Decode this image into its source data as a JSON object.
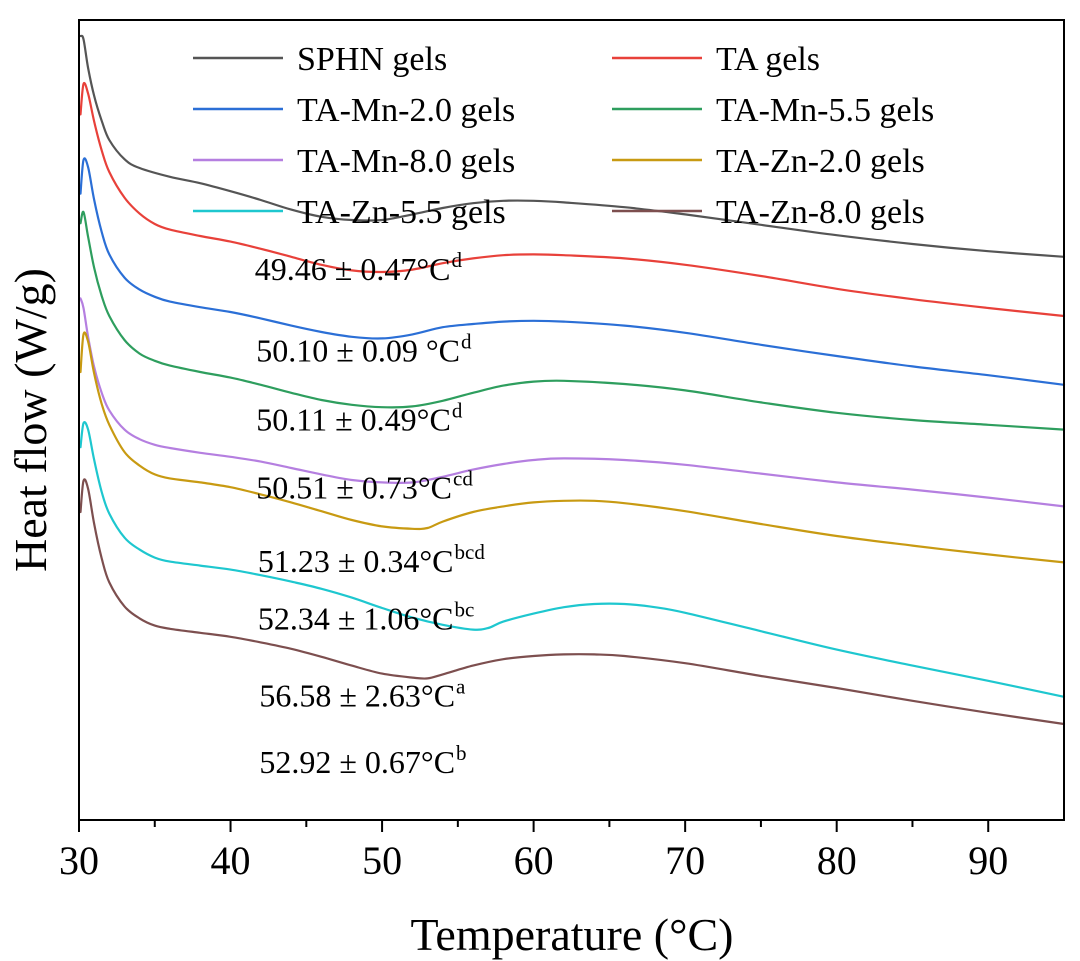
{
  "chart_data": {
    "type": "line",
    "xlabel": "Temperature (°C)",
    "ylabel": "Heat flow (W/g)",
    "xlim": [
      30,
      95
    ],
    "ylim": [
      0,
      100
    ],
    "x_ticks": [
      30,
      40,
      50,
      60,
      70,
      80,
      90
    ],
    "x_tick_labels": [
      "30",
      "40",
      "50",
      "60",
      "70",
      "80",
      "90"
    ],
    "y_ticks_shown": false,
    "legend_position": "top",
    "series": [
      {
        "name": "SPHN gels",
        "color": "#555555",
        "points": [
          [
            30.1,
            98.0
          ],
          [
            30.3,
            97.6
          ],
          [
            30.6,
            94.0
          ],
          [
            31.0,
            90.5
          ],
          [
            31.5,
            87.4
          ],
          [
            32.0,
            85.0
          ],
          [
            33.0,
            82.6
          ],
          [
            34.0,
            81.5
          ],
          [
            36.0,
            80.4
          ],
          [
            38.0,
            79.6
          ],
          [
            40.0,
            78.6
          ],
          [
            42.0,
            77.5
          ],
          [
            44.0,
            76.3
          ],
          [
            46.0,
            75.4
          ],
          [
            48.0,
            75.0
          ],
          [
            50.0,
            75.0
          ],
          [
            52.0,
            75.7
          ],
          [
            54.0,
            76.5
          ],
          [
            56.0,
            77.1
          ],
          [
            58.0,
            77.4
          ],
          [
            60.0,
            77.4
          ],
          [
            62.0,
            77.2
          ],
          [
            66.0,
            76.6
          ],
          [
            70.0,
            75.7
          ],
          [
            75.0,
            74.4
          ],
          [
            80.0,
            73.1
          ],
          [
            85.0,
            72.0
          ],
          [
            90.0,
            71.1
          ],
          [
            95.0,
            70.4
          ]
        ]
      },
      {
        "name": "TA gels",
        "color": "#e8413a",
        "points": [
          [
            30.1,
            88.2
          ],
          [
            30.3,
            92.0
          ],
          [
            30.6,
            90.8
          ],
          [
            31.0,
            87.3
          ],
          [
            31.5,
            83.7
          ],
          [
            32.0,
            81.0
          ],
          [
            33.0,
            77.8
          ],
          [
            34.0,
            75.8
          ],
          [
            35.0,
            74.5
          ],
          [
            36.0,
            73.8
          ],
          [
            38.0,
            73.0
          ],
          [
            40.0,
            72.3
          ],
          [
            42.0,
            71.4
          ],
          [
            44.0,
            70.4
          ],
          [
            46.0,
            69.4
          ],
          [
            48.0,
            68.7
          ],
          [
            50.0,
            68.5
          ],
          [
            52.0,
            68.8
          ],
          [
            54.0,
            69.6
          ],
          [
            56.0,
            70.2
          ],
          [
            58.0,
            70.6
          ],
          [
            60.0,
            70.7
          ],
          [
            62.0,
            70.6
          ],
          [
            66.0,
            70.2
          ],
          [
            70.0,
            69.4
          ],
          [
            75.0,
            68.0
          ],
          [
            80.0,
            66.4
          ],
          [
            85.0,
            65.1
          ],
          [
            90.0,
            64.0
          ],
          [
            95.0,
            63.0
          ]
        ]
      },
      {
        "name": "TA-Mn-2.0 gels",
        "color": "#2b6fd6",
        "points": [
          [
            30.1,
            78.3
          ],
          [
            30.3,
            82.5
          ],
          [
            30.6,
            81.6
          ],
          [
            31.0,
            77.5
          ],
          [
            31.5,
            73.5
          ],
          [
            32.0,
            70.7
          ],
          [
            33.0,
            67.8
          ],
          [
            34.0,
            66.3
          ],
          [
            35.0,
            65.4
          ],
          [
            36.0,
            64.8
          ],
          [
            38.0,
            64.1
          ],
          [
            40.0,
            63.5
          ],
          [
            42.0,
            62.7
          ],
          [
            44.0,
            61.8
          ],
          [
            46.0,
            61.0
          ],
          [
            48.0,
            60.4
          ],
          [
            50.0,
            60.2
          ],
          [
            52.0,
            60.7
          ],
          [
            54.0,
            61.6
          ],
          [
            56.0,
            62.0
          ],
          [
            58.0,
            62.3
          ],
          [
            60.0,
            62.4
          ],
          [
            62.0,
            62.3
          ],
          [
            66.0,
            61.8
          ],
          [
            70.0,
            60.9
          ],
          [
            75.0,
            59.4
          ],
          [
            80.0,
            58.0
          ],
          [
            85.0,
            56.7
          ],
          [
            90.0,
            55.6
          ],
          [
            95.0,
            54.4
          ]
        ]
      },
      {
        "name": "TA-Mn-5.5 gels",
        "color": "#2e9e5e",
        "points": [
          [
            30.1,
            74.6
          ],
          [
            30.3,
            76.0
          ],
          [
            30.6,
            72.9
          ],
          [
            31.0,
            69.0
          ],
          [
            31.5,
            65.5
          ],
          [
            32.0,
            63.0
          ],
          [
            33.0,
            60.0
          ],
          [
            34.0,
            58.3
          ],
          [
            35.0,
            57.4
          ],
          [
            36.0,
            56.8
          ],
          [
            38.0,
            56.0
          ],
          [
            40.0,
            55.3
          ],
          [
            42.0,
            54.4
          ],
          [
            44.0,
            53.4
          ],
          [
            46.0,
            52.5
          ],
          [
            48.0,
            51.9
          ],
          [
            50.0,
            51.6
          ],
          [
            52.0,
            51.7
          ],
          [
            54.0,
            52.4
          ],
          [
            56.0,
            53.4
          ],
          [
            58.0,
            54.3
          ],
          [
            60.0,
            54.8
          ],
          [
            62.0,
            54.9
          ],
          [
            66.0,
            54.5
          ],
          [
            70.0,
            53.7
          ],
          [
            75.0,
            52.2
          ],
          [
            80.0,
            50.9
          ],
          [
            85.0,
            50.0
          ],
          [
            90.0,
            49.4
          ],
          [
            95.0,
            48.8
          ]
        ]
      },
      {
        "name": "TA-Mn-8.0 gels",
        "color": "#b57fe0",
        "points": [
          [
            30.1,
            65.2
          ],
          [
            30.3,
            64.0
          ],
          [
            30.6,
            60.4
          ],
          [
            31.0,
            56.6
          ],
          [
            31.5,
            53.4
          ],
          [
            32.0,
            51.2
          ],
          [
            33.0,
            48.8
          ],
          [
            34.0,
            47.6
          ],
          [
            35.0,
            46.9
          ],
          [
            36.0,
            46.5
          ],
          [
            38.0,
            45.9
          ],
          [
            40.0,
            45.4
          ],
          [
            42.0,
            44.8
          ],
          [
            44.0,
            44.0
          ],
          [
            46.0,
            43.2
          ],
          [
            48.0,
            42.5
          ],
          [
            50.0,
            42.2
          ],
          [
            52.0,
            42.2
          ],
          [
            54.0,
            42.9
          ],
          [
            56.0,
            43.8
          ],
          [
            58.0,
            44.5
          ],
          [
            60.0,
            45.0
          ],
          [
            62.0,
            45.2
          ],
          [
            66.0,
            45.0
          ],
          [
            70.0,
            44.4
          ],
          [
            75.0,
            43.3
          ],
          [
            80.0,
            42.2
          ],
          [
            85.0,
            41.3
          ],
          [
            90.0,
            40.3
          ],
          [
            95.0,
            39.2
          ]
        ]
      },
      {
        "name": "TA-Zn-2.0 gels",
        "color": "#c89a12",
        "points": [
          [
            30.1,
            56.0
          ],
          [
            30.3,
            60.7
          ],
          [
            30.6,
            59.8
          ],
          [
            31.0,
            55.8
          ],
          [
            31.5,
            52.0
          ],
          [
            32.0,
            49.4
          ],
          [
            33.0,
            46.0
          ],
          [
            34.0,
            44.3
          ],
          [
            35.0,
            43.2
          ],
          [
            36.0,
            42.7
          ],
          [
            38.0,
            42.2
          ],
          [
            40.0,
            41.6
          ],
          [
            42.0,
            40.7
          ],
          [
            44.0,
            39.7
          ],
          [
            46.0,
            38.6
          ],
          [
            48.0,
            37.5
          ],
          [
            50.0,
            36.7
          ],
          [
            52.0,
            36.4
          ],
          [
            53.0,
            36.5
          ],
          [
            54.0,
            37.3
          ],
          [
            56.0,
            38.5
          ],
          [
            58.0,
            39.2
          ],
          [
            60.0,
            39.7
          ],
          [
            62.0,
            39.9
          ],
          [
            64.0,
            39.9
          ],
          [
            66.0,
            39.6
          ],
          [
            70.0,
            38.6
          ],
          [
            75.0,
            37.0
          ],
          [
            80.0,
            35.5
          ],
          [
            85.0,
            34.3
          ],
          [
            90.0,
            33.2
          ],
          [
            95.0,
            32.2
          ]
        ]
      },
      {
        "name": "TA-Zn-5.5 gels",
        "color": "#1ec7cf",
        "points": [
          [
            30.1,
            46.6
          ],
          [
            30.3,
            49.6
          ],
          [
            30.6,
            48.8
          ],
          [
            31.0,
            45.0
          ],
          [
            31.5,
            41.0
          ],
          [
            32.0,
            38.3
          ],
          [
            33.0,
            35.3
          ],
          [
            34.0,
            33.8
          ],
          [
            35.0,
            32.8
          ],
          [
            36.0,
            32.3
          ],
          [
            38.0,
            31.8
          ],
          [
            40.0,
            31.3
          ],
          [
            42.0,
            30.6
          ],
          [
            44.0,
            29.8
          ],
          [
            46.0,
            28.9
          ],
          [
            48.0,
            27.8
          ],
          [
            50.0,
            26.5
          ],
          [
            52.0,
            25.3
          ],
          [
            54.0,
            24.4
          ],
          [
            56.0,
            23.8
          ],
          [
            57.0,
            24.0
          ],
          [
            58.0,
            24.8
          ],
          [
            60.0,
            25.8
          ],
          [
            62.0,
            26.6
          ],
          [
            64.0,
            27.0
          ],
          [
            66.0,
            27.0
          ],
          [
            68.0,
            26.6
          ],
          [
            70.0,
            25.9
          ],
          [
            75.0,
            23.6
          ],
          [
            80.0,
            21.3
          ],
          [
            85.0,
            19.3
          ],
          [
            90.0,
            17.4
          ],
          [
            95.0,
            15.4
          ]
        ]
      },
      {
        "name": "TA-Zn-8.0 gels",
        "color": "#7d4f4f",
        "points": [
          [
            30.1,
            38.5
          ],
          [
            30.3,
            42.4
          ],
          [
            30.6,
            41.4
          ],
          [
            31.0,
            37.0
          ],
          [
            31.5,
            32.7
          ],
          [
            32.0,
            29.7
          ],
          [
            33.0,
            26.7
          ],
          [
            34.0,
            25.2
          ],
          [
            35.0,
            24.3
          ],
          [
            36.0,
            23.9
          ],
          [
            38.0,
            23.4
          ],
          [
            40.0,
            22.9
          ],
          [
            42.0,
            22.2
          ],
          [
            44.0,
            21.4
          ],
          [
            46.0,
            20.4
          ],
          [
            48.0,
            19.3
          ],
          [
            50.0,
            18.3
          ],
          [
            52.0,
            17.8
          ],
          [
            53.0,
            17.7
          ],
          [
            54.0,
            18.2
          ],
          [
            56.0,
            19.3
          ],
          [
            58.0,
            20.1
          ],
          [
            60.0,
            20.5
          ],
          [
            62.0,
            20.7
          ],
          [
            64.0,
            20.7
          ],
          [
            66.0,
            20.5
          ],
          [
            70.0,
            19.6
          ],
          [
            75.0,
            18.0
          ],
          [
            80.0,
            16.5
          ],
          [
            85.0,
            14.9
          ],
          [
            90.0,
            13.4
          ],
          [
            95.0,
            12.0
          ]
        ]
      }
    ],
    "annotations": [
      {
        "value": "49.46 ± 0.47°C",
        "superscript": "d",
        "x": 41.6,
        "y": 67.5
      },
      {
        "value": "50.10 ± 0.09 °C",
        "superscript": "d",
        "x": 41.7,
        "y": 57.3
      },
      {
        "value": "50.11 ± 0.49°C",
        "superscript": "d",
        "x": 41.7,
        "y": 48.7
      },
      {
        "value": "50.51 ± 0.73°C",
        "superscript": "cd",
        "x": 41.7,
        "y": 40.2
      },
      {
        "value": "51.23 ± 0.34°C",
        "superscript": "bcd",
        "x": 41.8,
        "y": 31.0
      },
      {
        "value": "52.34 ± 1.06°C",
        "superscript": "bc",
        "x": 41.8,
        "y": 23.8
      },
      {
        "value": "56.58 ± 2.63°C",
        "superscript": "a",
        "x": 41.9,
        "y": 14.2
      },
      {
        "value": "52.92 ± 0.67°C",
        "superscript": "b",
        "x": 41.9,
        "y": 5.9
      }
    ]
  }
}
